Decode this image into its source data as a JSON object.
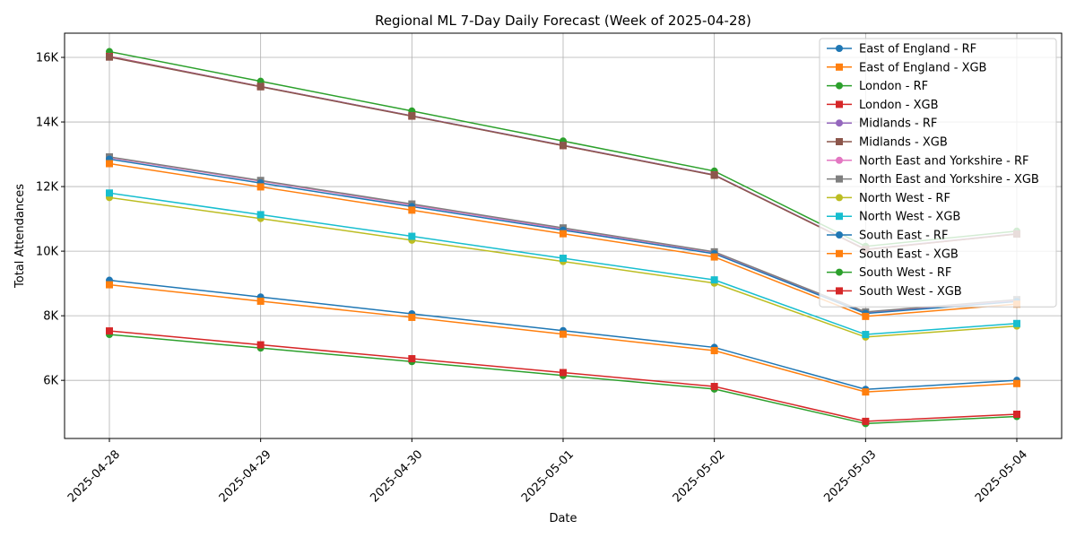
{
  "chart_data": {
    "type": "line",
    "title": "Regional ML 7-Day Daily Forecast (Week of 2025-04-28)",
    "xlabel": "Date",
    "ylabel": "Total Attendances",
    "categories": [
      "2025-04-28",
      "2025-04-29",
      "2025-04-30",
      "2025-05-01",
      "2025-05-02",
      "2025-05-03",
      "2025-05-04"
    ],
    "ylim": [
      4200,
      16750
    ],
    "yticks": [
      6000,
      8000,
      10000,
      12000,
      14000,
      16000
    ],
    "ytick_labels": [
      "6K",
      "8K",
      "10K",
      "12K",
      "14K",
      "16K"
    ],
    "grid": true,
    "legend_position": "top-right",
    "series": [
      {
        "name": "East of England - RF",
        "color": "#1f77b4",
        "marker": "circle",
        "values": [
          9100,
          8580,
          8060,
          7540,
          7020,
          5720,
          6000
        ]
      },
      {
        "name": "East of England - XGB",
        "color": "#ff7f0e",
        "marker": "square",
        "values": [
          8960,
          8450,
          7950,
          7430,
          6920,
          5640,
          5900
        ]
      },
      {
        "name": "London - RF",
        "color": "#2ca02c",
        "marker": "circle",
        "values": [
          16180,
          15260,
          14340,
          13410,
          12480,
          10150,
          10620
        ]
      },
      {
        "name": "London - XGB",
        "color": "#d62728",
        "marker": "square",
        "values": [
          16030,
          15100,
          14190,
          13270,
          12360,
          10050,
          10530
        ]
      },
      {
        "name": "Midlands - RF",
        "color": "#9467bd",
        "marker": "circle",
        "values": [
          16020,
          15100,
          14190,
          13280,
          12360,
          10060,
          10540
        ]
      },
      {
        "name": "Midlands - XGB",
        "color": "#8c564b",
        "marker": "square",
        "values": [
          16010,
          15090,
          14180,
          13270,
          12350,
          10050,
          10530
        ]
      },
      {
        "name": "North East and Yorkshire - RF",
        "color": "#e377c2",
        "marker": "circle",
        "values": [
          12900,
          12170,
          11430,
          10690,
          9960,
          8100,
          8480
        ]
      },
      {
        "name": "North East and Yorkshire - XGB",
        "color": "#7f7f7f",
        "marker": "square",
        "values": [
          12920,
          12190,
          11460,
          10720,
          9980,
          8120,
          8500
        ]
      },
      {
        "name": "North West - RF",
        "color": "#bcbd22",
        "marker": "circle",
        "values": [
          11660,
          11010,
          10340,
          9680,
          9010,
          7340,
          7680
        ]
      },
      {
        "name": "North West - XGB",
        "color": "#17becf",
        "marker": "square",
        "values": [
          11800,
          11130,
          10460,
          9780,
          9110,
          7420,
          7760
        ]
      },
      {
        "name": "South East - RF",
        "color": "#1f77b4",
        "marker": "circle",
        "values": [
          12850,
          12110,
          11380,
          10650,
          9920,
          8070,
          8440
        ]
      },
      {
        "name": "South East - XGB",
        "color": "#ff7f0e",
        "marker": "square",
        "values": [
          12710,
          11990,
          11270,
          10540,
          9820,
          7980,
          8360
        ]
      },
      {
        "name": "South West - RF",
        "color": "#2ca02c",
        "marker": "circle",
        "values": [
          7420,
          7000,
          6580,
          6150,
          5730,
          4660,
          4880
        ]
      },
      {
        "name": "South West - XGB",
        "color": "#d62728",
        "marker": "square",
        "values": [
          7530,
          7100,
          6670,
          6240,
          5810,
          4730,
          4950
        ]
      }
    ]
  }
}
